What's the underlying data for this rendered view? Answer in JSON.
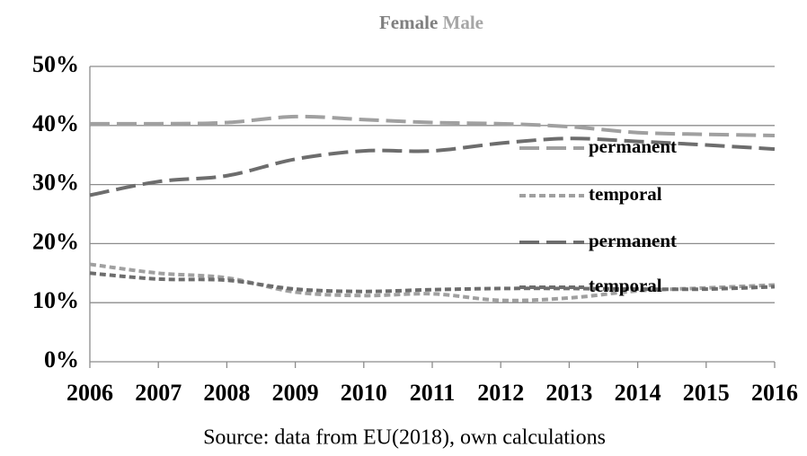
{
  "chart_data": {
    "type": "line",
    "title_parts": [
      "Female",
      "Male"
    ],
    "source": "Source: data from EU(2018), own calculations",
    "categories": [
      "2006",
      "2007",
      "2008",
      "2009",
      "2010",
      "2011",
      "2012",
      "2013",
      "2014",
      "2015",
      "2016"
    ],
    "series": [
      {
        "name": "permanent",
        "color": "#a0a0a0",
        "dash": "long",
        "values": [
          40.3,
          40.3,
          40.5,
          41.5,
          41,
          40.5,
          40.3,
          39.8,
          38.8,
          38.5,
          38.3
        ]
      },
      {
        "name": "temporal",
        "color": "#a0a0a0",
        "dash": "short",
        "values": [
          16.5,
          15,
          14.2,
          11.8,
          11.2,
          11.5,
          10.4,
          10.8,
          12,
          12.5,
          13
        ]
      },
      {
        "name": "permanent",
        "color": "#6d6d6d",
        "dash": "long",
        "values": [
          28.2,
          30.5,
          31.5,
          34.3,
          35.7,
          35.7,
          37,
          37.8,
          37.3,
          36.7,
          36
        ]
      },
      {
        "name": "temporal",
        "color": "#6d6d6d",
        "dash": "short",
        "values": [
          15,
          14,
          13.8,
          12.3,
          11.9,
          12.2,
          12.4,
          12.4,
          12.3,
          12.3,
          12.7
        ]
      }
    ],
    "ylim": [
      0,
      50
    ],
    "yticks": [
      {
        "value": 0,
        "label": "0%"
      },
      {
        "value": 10,
        "label": "10%"
      },
      {
        "value": 20,
        "label": "20%"
      },
      {
        "value": 30,
        "label": "30%"
      },
      {
        "value": 40,
        "label": "40%"
      },
      {
        "value": 50,
        "label": "50%"
      }
    ],
    "grid": true
  }
}
